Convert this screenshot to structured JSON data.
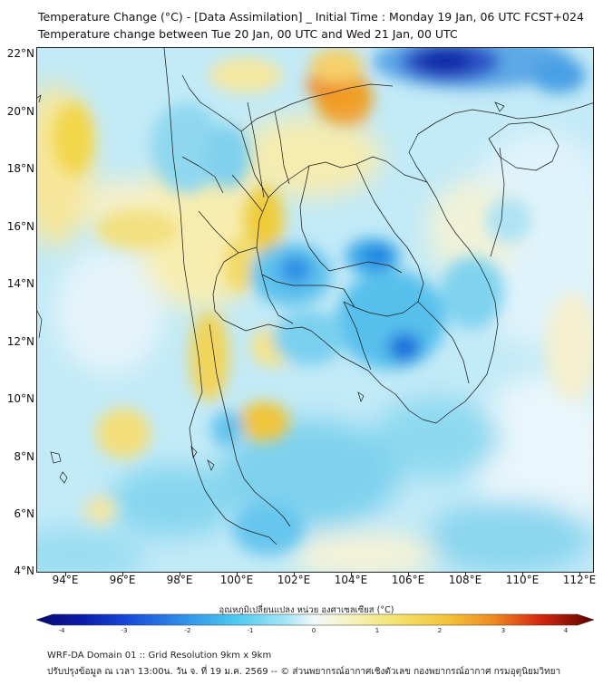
{
  "header": {
    "title_line1": "Temperature Change (°C) - [Data Assimilation] _ Initial Time : Monday 19 Jan, 06 UTC FCST+024",
    "title_line2": "Temperature change between Tue 20 Jan, 00 UTC and Wed 21 Jan, 00 UTC"
  },
  "map": {
    "lon_range": [
      93,
      112.5
    ],
    "lat_range": [
      4,
      22.25
    ],
    "lat_labels": [
      "22°N",
      "20°N",
      "18°N",
      "16°N",
      "14°N",
      "12°N",
      "10°N",
      "8°N",
      "6°N",
      "4°N"
    ],
    "lon_labels": [
      "94°E",
      "96°E",
      "98°E",
      "100°E",
      "102°E",
      "104°E",
      "106°E",
      "108°E",
      "110°E",
      "112°E"
    ],
    "background_color": "#c2eaf7"
  },
  "colorbar": {
    "title": "อุณหภูมิเปลี่ยนแปลง หน่วย องศาเซลเซียส (°C)",
    "tick_labels": [
      "-4",
      "-3",
      "-2",
      "-1",
      "0",
      "1",
      "2",
      "3",
      "4"
    ],
    "min_color": "#0a0a6e",
    "max_color": "#5c0000"
  },
  "footer": {
    "line1": "WRF-DA Domain 01 :: Grid Resolution 9km x 9km",
    "line2": "ปรับปรุงข้อมูล ณ เวลา 13:00น. วัน จ. ที่ 19 ม.ค. 2569 -- © ส่วนพยากรณ์อากาศเชิงตัวเลข กองพยากรณ์อากาศ กรมอุตุนิยมวิทยา"
  }
}
